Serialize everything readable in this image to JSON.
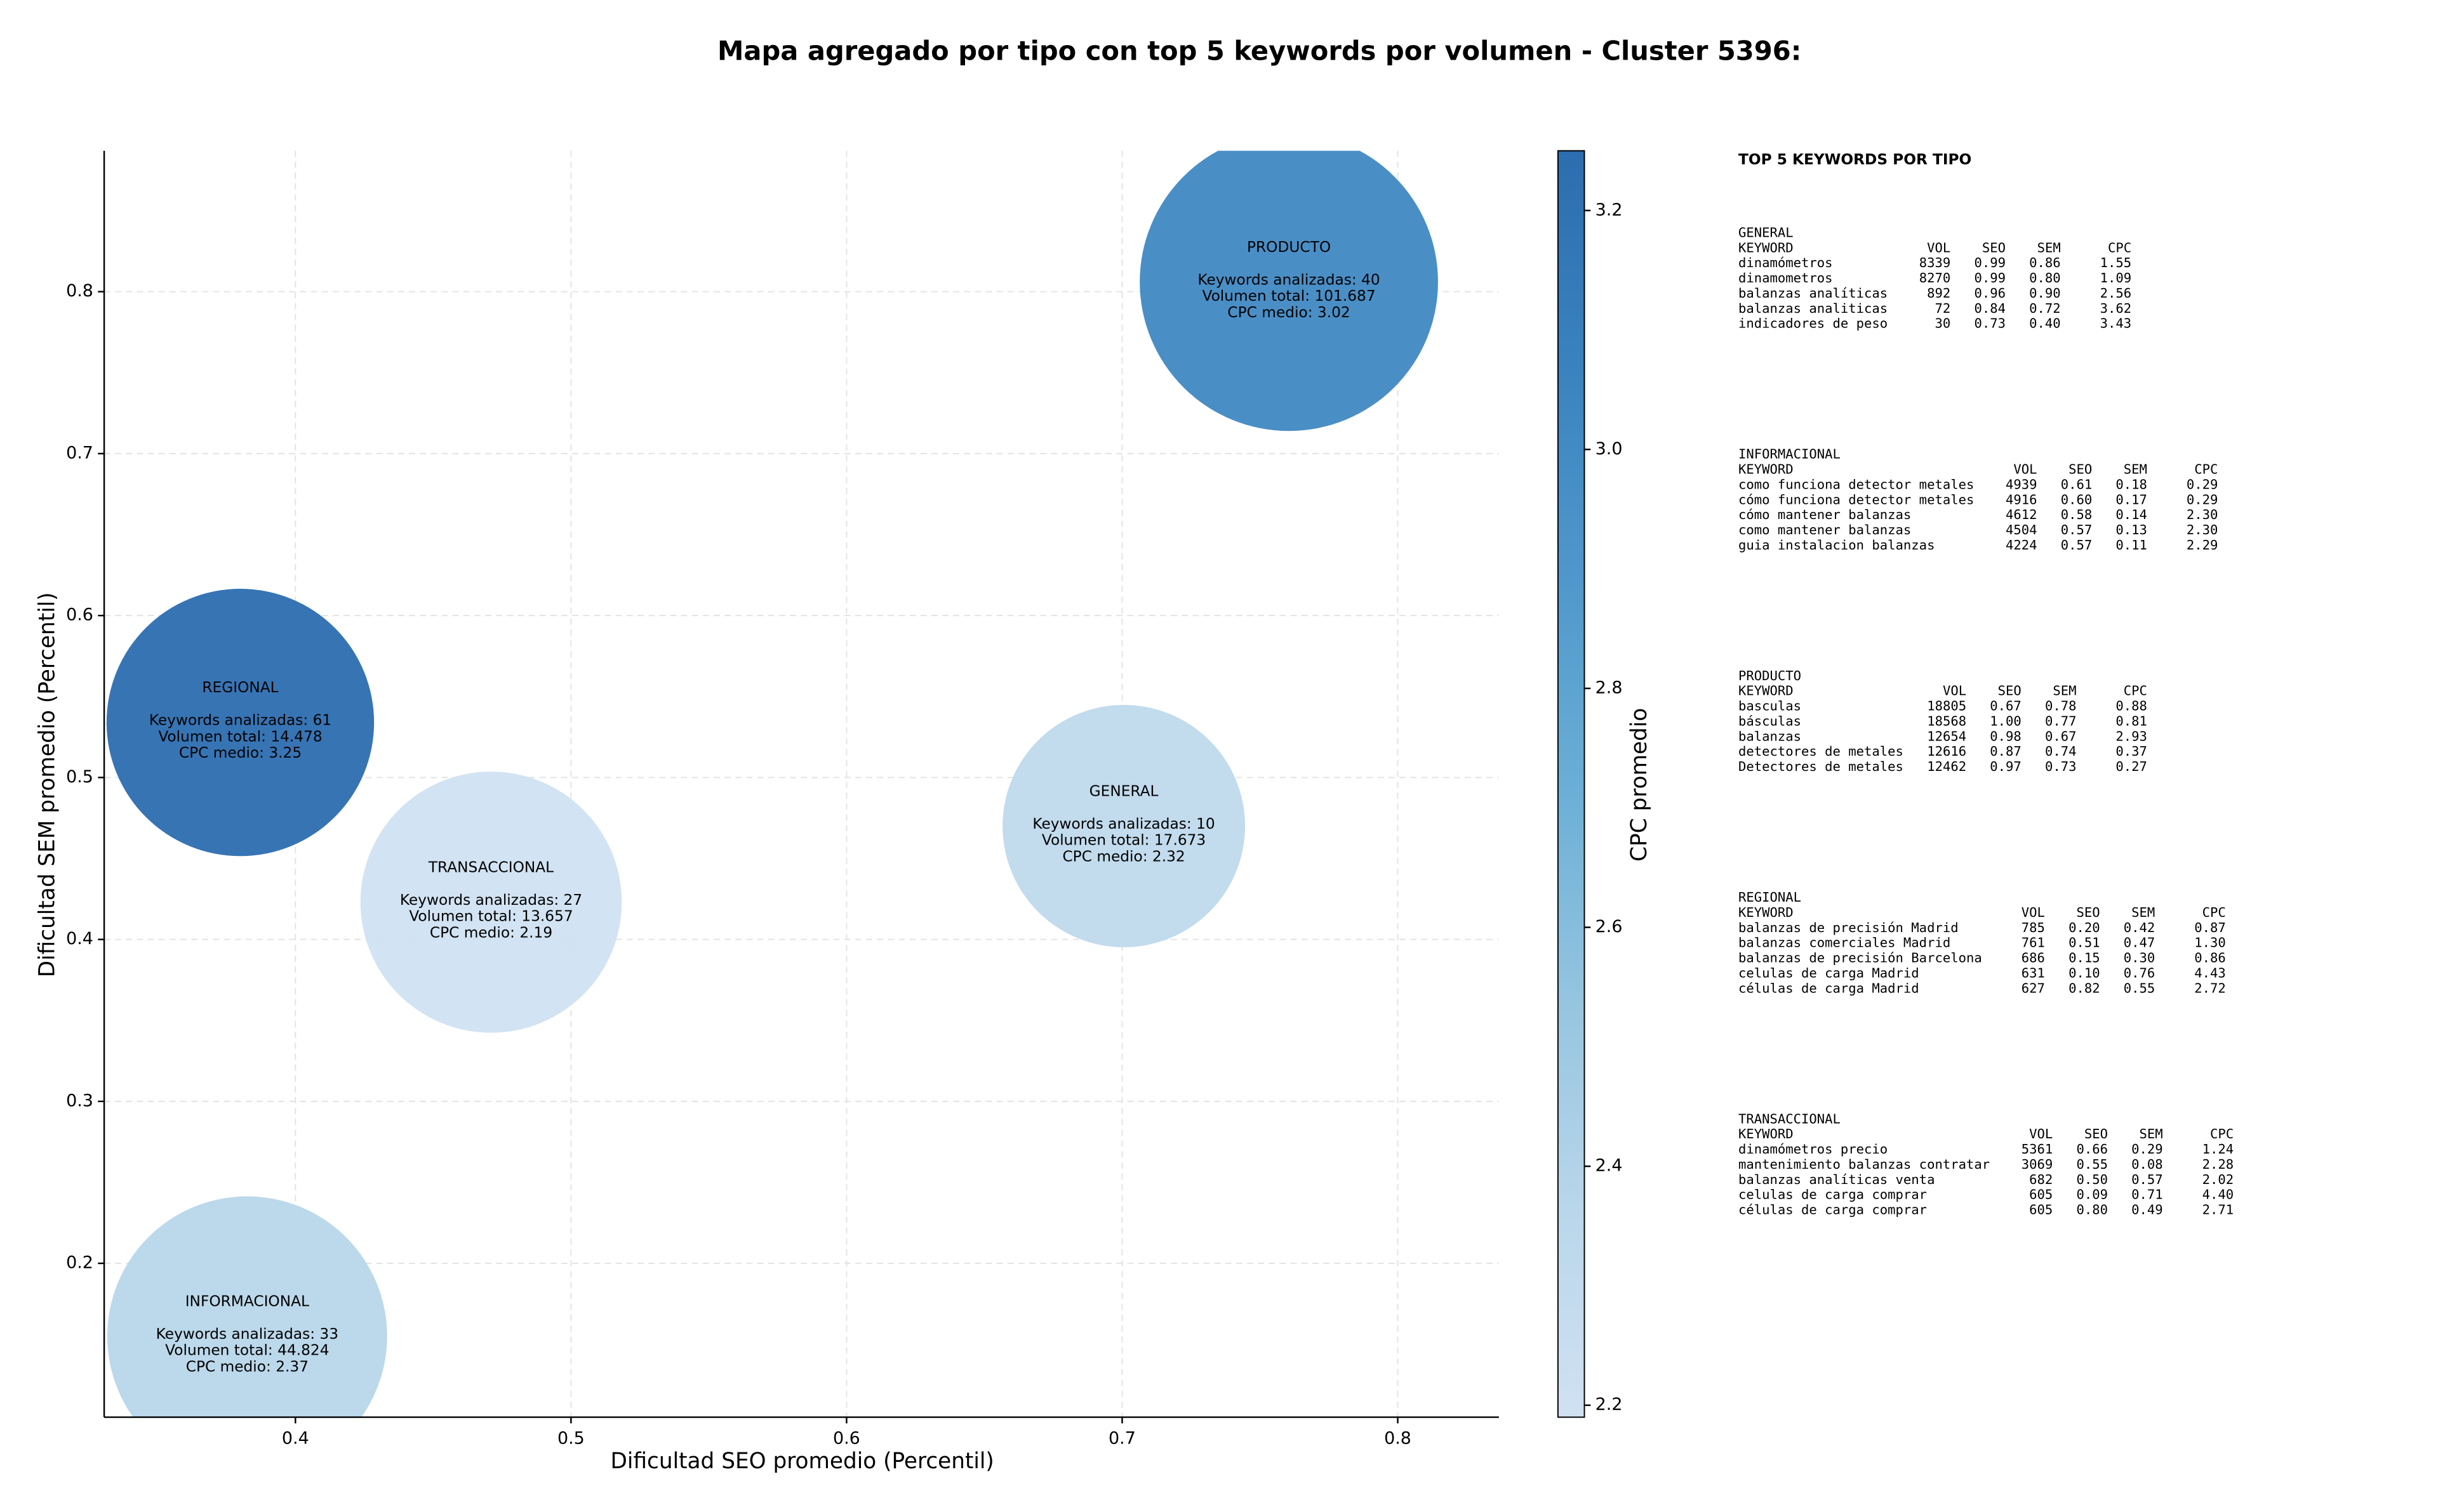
{
  "chart_data": {
    "type": "bubble",
    "title": "Mapa agregado por tipo con top 5 keywords por volumen - Cluster 5396:",
    "xlabel": "Dificultad SEO promedio (Percentil)",
    "ylabel": "Dificultad SEM promedio (Percentil)",
    "x": [
      0.7006,
      0.3825,
      0.7605,
      0.38,
      0.471
    ],
    "y": [
      0.47,
      0.155,
      0.806,
      0.534,
      0.423
    ],
    "sizes": [
      6080,
      8100,
      9200,
      7400,
      7060
    ],
    "cpc": [
      2.32,
      2.37,
      3.02,
      3.25,
      2.19
    ],
    "annotations": [
      [
        "GENERAL",
        "Keywords analizadas: 10",
        "Volumen total: 17.673",
        "CPC medio: 2.32"
      ],
      [
        "INFORMACIONAL",
        "Keywords analizadas: 33",
        "Volumen total: 44.824",
        "CPC medio: 2.37"
      ],
      [
        "PRODUCTO",
        "Keywords analizadas: 40",
        "Volumen total: 101.687",
        "CPC medio: 3.02"
      ],
      [
        "REGIONAL",
        "Keywords analizadas: 61",
        "Volumen total: 14.478",
        "CPC medio: 3.25"
      ],
      [
        "TRANSACCIONAL",
        "Keywords analizadas: 27",
        "Volumen total: 13.657",
        "CPC medio: 2.19"
      ]
    ],
    "xlim": [
      0.3306,
      0.8367
    ],
    "ylim": [
      0.105,
      0.887
    ],
    "xticks": [
      0.4,
      0.5,
      0.6,
      0.7,
      0.8
    ],
    "yticks": [
      0.2,
      0.3,
      0.4,
      0.5,
      0.6,
      0.7,
      0.8
    ],
    "grid": true,
    "colorbar": {
      "label": "CPC promedio",
      "lim": [
        2.19,
        3.25
      ],
      "ticks": [
        2.2,
        2.4,
        2.6,
        2.8,
        {
          "value": 3,
          "label": "3.0"
        },
        3.2
      ],
      "colormap": [
        "#d0e1f2",
        "#b9d6ea",
        "#94c4df",
        "#6aaed6",
        "#4f97cb",
        "#3a82bf",
        "#2c6db0"
      ]
    }
  },
  "keywords_table": {
    "title": "TOP 5 KEYWORDS POR TIPO",
    "columns": [
      "KEYWORD",
      "VOL",
      "SEO",
      "SEM",
      "CPC"
    ],
    "sections": [
      {
        "name": "GENERAL",
        "rows": [
          [
            "dinamómetros",
            "8339",
            "0.99",
            "0.86",
            "1.55"
          ],
          [
            "dinamometros",
            "8270",
            "0.99",
            "0.80",
            "1.09"
          ],
          [
            "balanzas analíticas",
            "892",
            "0.96",
            "0.90",
            "2.56"
          ],
          [
            "balanzas analiticas",
            "72",
            "0.84",
            "0.72",
            "3.62"
          ],
          [
            "indicadores de peso",
            "30",
            "0.73",
            "0.40",
            "3.43"
          ]
        ]
      },
      {
        "name": "INFORMACIONAL",
        "rows": [
          [
            "como funciona detector metales",
            "4939",
            "0.61",
            "0.18",
            "0.29"
          ],
          [
            "cómo funciona detector metales",
            "4916",
            "0.60",
            "0.17",
            "0.29"
          ],
          [
            "cómo mantener balanzas",
            "4612",
            "0.58",
            "0.14",
            "2.30"
          ],
          [
            "como mantener balanzas",
            "4504",
            "0.57",
            "0.13",
            "2.30"
          ],
          [
            "guia instalacion balanzas",
            "4224",
            "0.57",
            "0.11",
            "2.29"
          ]
        ]
      },
      {
        "name": "PRODUCTO",
        "rows": [
          [
            "basculas",
            "18805",
            "0.67",
            "0.78",
            "0.88"
          ],
          [
            "básculas",
            "18568",
            "1.00",
            "0.77",
            "0.81"
          ],
          [
            "balanzas",
            "12654",
            "0.98",
            "0.67",
            "2.93"
          ],
          [
            "detectores de metales",
            "12616",
            "0.87",
            "0.74",
            "0.37"
          ],
          [
            "Detectores de metales",
            "12462",
            "0.97",
            "0.73",
            "0.27"
          ]
        ]
      },
      {
        "name": "REGIONAL",
        "rows": [
          [
            "balanzas de precisión Madrid",
            "785",
            "0.20",
            "0.42",
            "0.87"
          ],
          [
            "balanzas comerciales Madrid",
            "761",
            "0.51",
            "0.47",
            "1.30"
          ],
          [
            "balanzas de precisión Barcelona",
            "686",
            "0.15",
            "0.30",
            "0.86"
          ],
          [
            "celulas de carga Madrid",
            "631",
            "0.10",
            "0.76",
            "4.43"
          ],
          [
            "células de carga Madrid",
            "627",
            "0.82",
            "0.55",
            "2.72"
          ]
        ]
      },
      {
        "name": "TRANSACCIONAL",
        "rows": [
          [
            "dinamómetros precio",
            "5361",
            "0.66",
            "0.29",
            "1.24"
          ],
          [
            "mantenimiento balanzas contratar",
            "3069",
            "0.55",
            "0.08",
            "2.28"
          ],
          [
            "balanzas analíticas venta",
            "682",
            "0.50",
            "0.57",
            "2.02"
          ],
          [
            "celulas de carga comprar",
            "605",
            "0.09",
            "0.71",
            "4.40"
          ],
          [
            "células de carga comprar",
            "605",
            "0.80",
            "0.49",
            "2.71"
          ]
        ]
      }
    ]
  }
}
